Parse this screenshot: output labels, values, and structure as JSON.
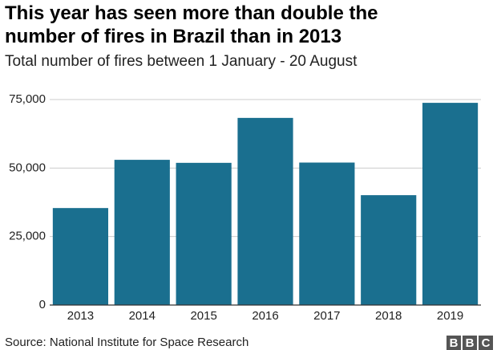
{
  "chart_data": {
    "type": "bar",
    "title": "This year has seen more than double the number of fires in Brazil than in 2013",
    "subtitle": "Total number of fires between 1 January - 20 August",
    "categories": [
      "2013",
      "2014",
      "2015",
      "2016",
      "2017",
      "2018",
      "2019"
    ],
    "values": [
      35400,
      53000,
      51900,
      68300,
      52000,
      40100,
      73800
    ],
    "color": "#1a6f8f",
    "ylim": [
      0,
      75000
    ],
    "yticks": [
      0,
      {
        "value": 25000,
        "label": "25,000"
      },
      {
        "value": 50000,
        "label": "50,000"
      },
      {
        "value": 75000,
        "label": "75,000"
      }
    ],
    "grid": true,
    "source": "Source: National Institute for Space Research",
    "logo": [
      "B",
      "B",
      "C"
    ]
  }
}
